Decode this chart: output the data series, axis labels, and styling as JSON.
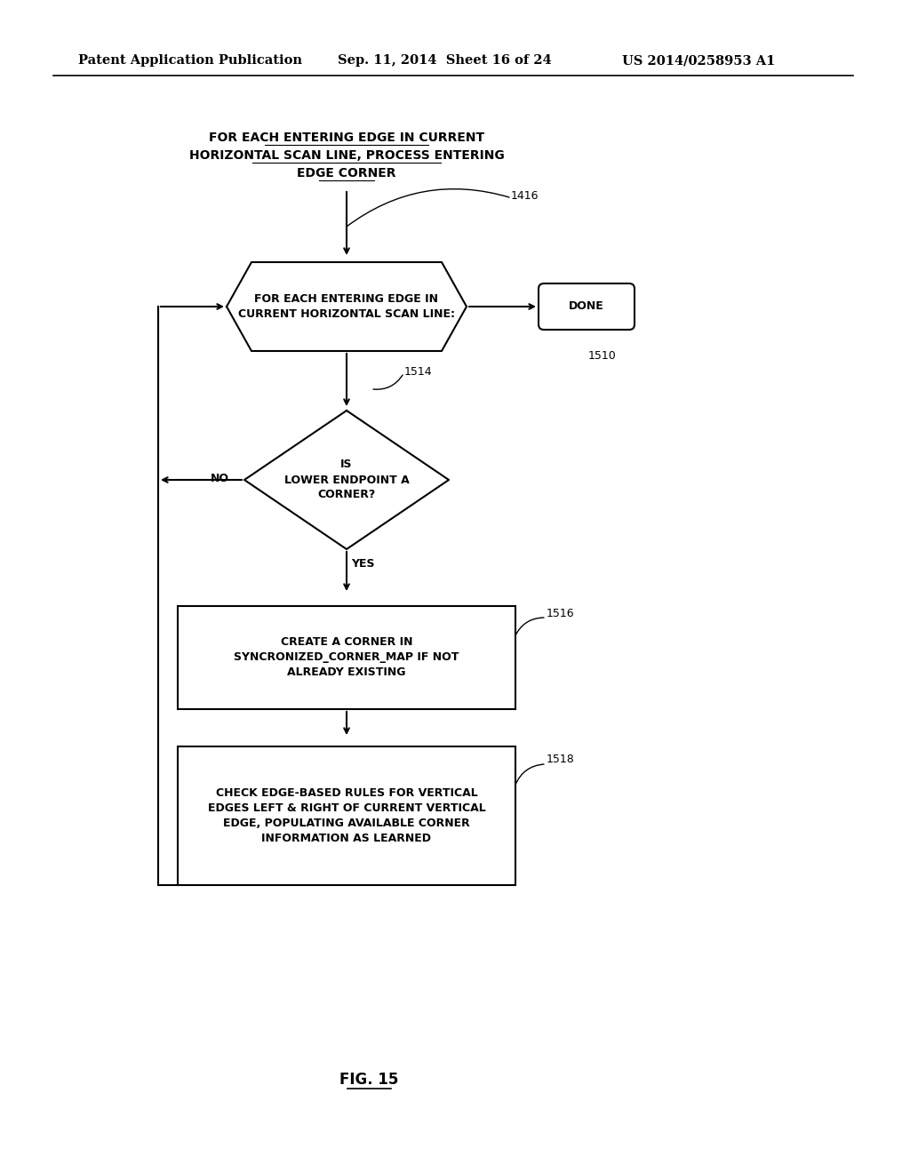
{
  "bg_color": "#ffffff",
  "header_left": "Patent Application Publication",
  "header_mid": "Sep. 11, 2014  Sheet 16 of 24",
  "header_right": "US 2014/0258953 A1",
  "title_text": "FOR EACH ENTERING EDGE IN CURRENT\nHORIZONTAL SCAN LINE, PROCESS ENTERING\nEDGE CORNER",
  "label_1416": "1416",
  "node_loop_text": "FOR EACH ENTERING EDGE IN\nCURRENT HORIZONTAL SCAN LINE:",
  "node_done_text": "DONE",
  "label_1510": "1510",
  "label_1514": "1514",
  "diamond_text": "IS\nLOWER ENDPOINT A\nCORNER?",
  "no_label": "NO",
  "yes_label": "YES",
  "box_1516_text": "CREATE A CORNER IN\nSYNCRONIZED_CORNER_MAP IF NOT\nALREADY EXISTING",
  "label_1516": "1516",
  "box_1518_text": "CHECK EDGE-BASED RULES FOR VERTICAL\nEDGES LEFT & RIGHT OF CURRENT VERTICAL\nEDGE, POPULATING AVAILABLE CORNER\nINFORMATION AS LEARNED",
  "label_1518": "1518",
  "fig_label": "FIG. 15",
  "line_color": "#000000",
  "text_color": "#000000",
  "font_size_header": 10.5,
  "font_size_body": 9.5,
  "font_size_fig": 12
}
